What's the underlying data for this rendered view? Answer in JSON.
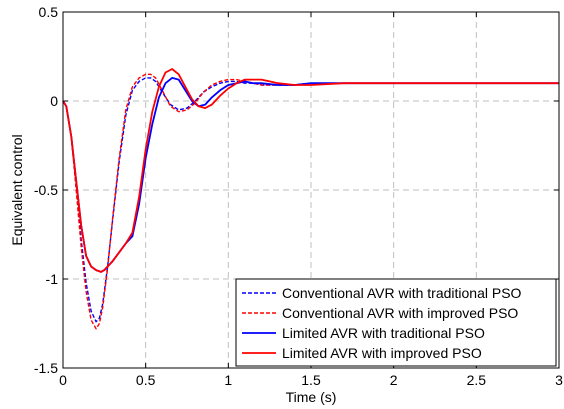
{
  "chart_data": {
    "type": "line",
    "title": "",
    "xlabel": "Time (s)",
    "ylabel": "Equivalent control",
    "xlim": [
      0,
      3
    ],
    "ylim": [
      -1.5,
      0.5
    ],
    "xticks": [
      0,
      0.5,
      1,
      1.5,
      2,
      2.5,
      3
    ],
    "xtick_labels": [
      "0",
      "0.5",
      "1",
      "1.5",
      "2",
      "2.5",
      "3"
    ],
    "yticks": [
      -1.5,
      -1,
      -0.5,
      0,
      0.5
    ],
    "ytick_labels": [
      "-1.5",
      "-1",
      "-0.5",
      "0",
      "0.5"
    ],
    "grid": true,
    "legend_position": "bottom-right",
    "series": [
      {
        "name": "Conventional AVR with traditional PSO",
        "color": "#0000ff",
        "dash": true,
        "x": [
          0,
          0.02,
          0.05,
          0.08,
          0.11,
          0.14,
          0.17,
          0.2,
          0.22,
          0.24,
          0.27,
          0.3,
          0.34,
          0.38,
          0.42,
          0.46,
          0.5,
          0.53,
          0.56,
          0.6,
          0.65,
          0.7,
          0.75,
          0.8,
          0.85,
          0.9,
          0.95,
          1.0,
          1.05,
          1.1,
          1.15,
          1.2,
          1.3,
          1.4,
          1.5,
          1.7,
          2.0,
          2.5,
          3.0
        ],
        "y": [
          0,
          -0.03,
          -0.2,
          -0.48,
          -0.78,
          -1.02,
          -1.18,
          -1.24,
          -1.22,
          -1.14,
          -0.93,
          -0.67,
          -0.34,
          -0.08,
          0.06,
          0.11,
          0.13,
          0.13,
          0.11,
          0.05,
          -0.02,
          -0.05,
          -0.04,
          0.0,
          0.05,
          0.08,
          0.1,
          0.11,
          0.11,
          0.1,
          0.1,
          0.09,
          0.09,
          0.09,
          0.1,
          0.1,
          0.1,
          0.1,
          0.1
        ]
      },
      {
        "name": "Conventional AVR with improved PSO",
        "color": "#ff0000",
        "dash": true,
        "x": [
          0,
          0.02,
          0.05,
          0.08,
          0.11,
          0.14,
          0.17,
          0.2,
          0.22,
          0.24,
          0.27,
          0.3,
          0.34,
          0.38,
          0.42,
          0.46,
          0.5,
          0.53,
          0.56,
          0.6,
          0.65,
          0.7,
          0.75,
          0.8,
          0.85,
          0.9,
          0.95,
          1.0,
          1.05,
          1.1,
          1.15,
          1.2,
          1.3,
          1.4,
          1.5,
          1.7,
          2.0,
          2.5,
          3.0
        ],
        "y": [
          0,
          -0.03,
          -0.2,
          -0.5,
          -0.82,
          -1.07,
          -1.23,
          -1.28,
          -1.25,
          -1.16,
          -0.94,
          -0.66,
          -0.32,
          -0.05,
          0.08,
          0.13,
          0.15,
          0.15,
          0.13,
          0.06,
          -0.03,
          -0.06,
          -0.05,
          -0.01,
          0.05,
          0.09,
          0.11,
          0.12,
          0.12,
          0.11,
          0.1,
          0.09,
          0.09,
          0.09,
          0.1,
          0.1,
          0.1,
          0.1,
          0.1
        ]
      },
      {
        "name": "Limited AVR with traditional PSO",
        "color": "#0000ff",
        "dash": false,
        "x": [
          0,
          0.02,
          0.05,
          0.08,
          0.11,
          0.14,
          0.17,
          0.2,
          0.23,
          0.25,
          0.27,
          0.3,
          0.34,
          0.38,
          0.42,
          0.46,
          0.5,
          0.54,
          0.58,
          0.62,
          0.66,
          0.7,
          0.74,
          0.78,
          0.82,
          0.86,
          0.9,
          0.95,
          1.0,
          1.05,
          1.1,
          1.15,
          1.2,
          1.3,
          1.4,
          1.5,
          1.7,
          2.0,
          2.5,
          3.0
        ],
        "y": [
          0,
          -0.03,
          -0.2,
          -0.45,
          -0.7,
          -0.87,
          -0.93,
          -0.95,
          -0.96,
          -0.95,
          -0.93,
          -0.9,
          -0.85,
          -0.8,
          -0.76,
          -0.58,
          -0.32,
          -0.13,
          0.02,
          0.1,
          0.13,
          0.12,
          0.06,
          0.0,
          -0.03,
          -0.02,
          0.02,
          0.06,
          0.09,
          0.1,
          0.11,
          0.1,
          0.1,
          0.09,
          0.09,
          0.1,
          0.1,
          0.1,
          0.1,
          0.1
        ]
      },
      {
        "name": "Limited AVR with improved PSO",
        "color": "#ff0000",
        "dash": false,
        "x": [
          0,
          0.02,
          0.05,
          0.08,
          0.11,
          0.14,
          0.17,
          0.2,
          0.23,
          0.25,
          0.27,
          0.3,
          0.34,
          0.38,
          0.42,
          0.46,
          0.5,
          0.54,
          0.58,
          0.62,
          0.66,
          0.7,
          0.74,
          0.78,
          0.82,
          0.86,
          0.9,
          0.95,
          1.0,
          1.05,
          1.1,
          1.15,
          1.2,
          1.25,
          1.3,
          1.4,
          1.5,
          1.7,
          2.0,
          2.5,
          3.0
        ],
        "y": [
          0,
          -0.03,
          -0.2,
          -0.45,
          -0.7,
          -0.87,
          -0.93,
          -0.95,
          -0.96,
          -0.95,
          -0.93,
          -0.9,
          -0.85,
          -0.8,
          -0.74,
          -0.54,
          -0.27,
          -0.06,
          0.08,
          0.16,
          0.18,
          0.15,
          0.08,
          0.01,
          -0.03,
          -0.04,
          -0.02,
          0.03,
          0.07,
          0.1,
          0.12,
          0.12,
          0.12,
          0.11,
          0.1,
          0.09,
          0.09,
          0.1,
          0.1,
          0.1,
          0.1
        ]
      }
    ]
  }
}
